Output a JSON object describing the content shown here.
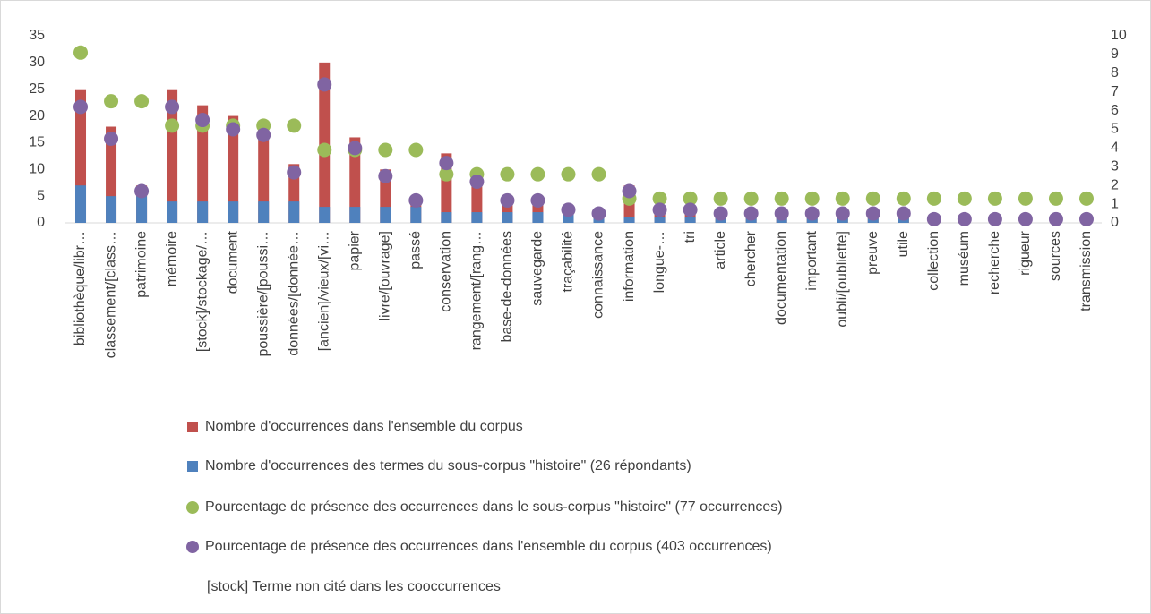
{
  "chart_data": {
    "type": "bar",
    "categories": [
      "bibliothèque/libr…",
      "classement/[class…",
      "patrimoine",
      "mémoire",
      "[stock]/stockage/…",
      "document",
      "poussière/[poussi…",
      "données/[donnée…",
      "[ancien]/vieux/[vi…",
      "papier",
      "livre/[ouvrage]",
      "passé",
      "conservation",
      "rangement/[rang…",
      "base-de-données",
      "sauvegarde",
      "traçabilité",
      "connaissance",
      "information",
      "longue-…",
      "tri",
      "article",
      "chercher",
      "documentation",
      "important",
      "oubli/[oubliette]",
      "preuve",
      "utile",
      "collection",
      "muséum",
      "recherche",
      "rigueur",
      "sources",
      "transmission"
    ],
    "series": [
      {
        "name": "Nombre d'occurrences dans l'ensemble du corpus",
        "type": "bar",
        "color": "#c0504d",
        "values": [
          25,
          18,
          7,
          25,
          22,
          20,
          19,
          11,
          30,
          16,
          10,
          5,
          13,
          9,
          5,
          5,
          3,
          2,
          7,
          3,
          3,
          2,
          2,
          2,
          2,
          2,
          2,
          2,
          1,
          1,
          1,
          1,
          1,
          1
        ]
      },
      {
        "name": "Nombre d'occurrences des termes du sous-corpus \"histoire\" (26 répondants)",
        "type": "bar",
        "color": "#4f81bd",
        "values": [
          7,
          5,
          5,
          4,
          4,
          4,
          4,
          4,
          3,
          3,
          3,
          3,
          2,
          2,
          2,
          2,
          2,
          2,
          1,
          1,
          1,
          1,
          1,
          1,
          1,
          1,
          1,
          1,
          1,
          1,
          1,
          1,
          1,
          1
        ]
      },
      {
        "name": "Pourcentage de présence des occurrences dans le sous-corpus \"histoire\" (77 occurrences)",
        "type": "scatter",
        "axis": "y2",
        "color": "#9bbb59",
        "values": [
          9.1,
          6.5,
          6.5,
          5.2,
          5.2,
          5.2,
          5.2,
          5.2,
          3.9,
          3.9,
          3.9,
          3.9,
          2.6,
          2.6,
          2.6,
          2.6,
          2.6,
          2.6,
          1.3,
          1.3,
          1.3,
          1.3,
          1.3,
          1.3,
          1.3,
          1.3,
          1.3,
          1.3,
          1.3,
          1.3,
          1.3,
          1.3,
          1.3,
          1.3
        ]
      },
      {
        "name": "Pourcentage de présence des occurrences dans l'ensemble du corpus (403 occurrences)",
        "type": "scatter",
        "axis": "y2",
        "color": "#8064a2",
        "values": [
          6.2,
          4.5,
          1.7,
          6.2,
          5.5,
          5.0,
          4.7,
          2.7,
          7.4,
          4.0,
          2.5,
          1.2,
          3.2,
          2.2,
          1.2,
          1.2,
          0.7,
          0.5,
          1.7,
          0.7,
          0.7,
          0.5,
          0.5,
          0.5,
          0.5,
          0.5,
          0.5,
          0.5,
          0.2,
          0.2,
          0.2,
          0.2,
          0.2,
          0.2
        ]
      }
    ],
    "ylim": [
      0,
      35
    ],
    "yticks": [
      0,
      5,
      10,
      15,
      20,
      25,
      30,
      35
    ],
    "y2lim": [
      0,
      10
    ],
    "y2ticks": [
      0,
      1,
      2,
      3,
      4,
      5,
      6,
      7,
      8,
      9,
      10
    ],
    "grid": false,
    "annotation": "[stock] Terme non cité dans les cooccurrences"
  }
}
